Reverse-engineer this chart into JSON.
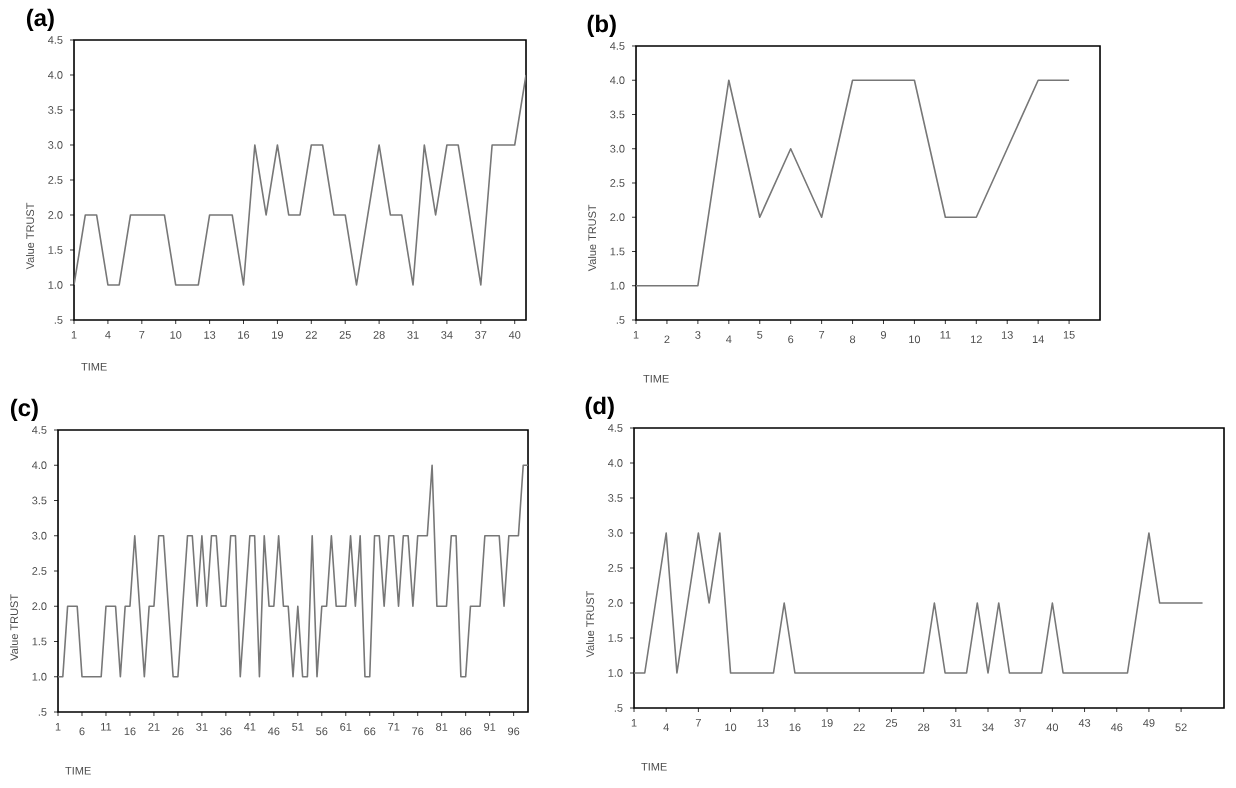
{
  "chart_data": [
    {
      "type": "line",
      "title": "(a)",
      "xlabel": "TIME",
      "ylabel": "Value TRUST",
      "color": "#777777",
      "line_style": "solid",
      "x": [
        1,
        2,
        3,
        4,
        5,
        6,
        7,
        8,
        9,
        10,
        11,
        12,
        13,
        14,
        15,
        16,
        17,
        18,
        19,
        20,
        21,
        22,
        23,
        24,
        25,
        26,
        27,
        28,
        29,
        30,
        31,
        32,
        33,
        34,
        35,
        36,
        37,
        38,
        39,
        40,
        41
      ],
      "values": [
        1,
        2,
        2,
        1,
        1,
        2,
        2,
        2,
        2,
        1,
        1,
        1,
        2,
        2,
        2,
        1,
        3,
        2,
        3,
        2,
        2,
        3,
        3,
        2,
        2,
        1,
        2,
        3,
        2,
        2,
        1,
        3,
        2,
        3,
        3,
        2,
        1,
        3,
        3,
        3,
        4
      ],
      "xlim": [
        1,
        41
      ],
      "xticks": [
        1,
        4,
        7,
        10,
        13,
        16,
        19,
        22,
        25,
        28,
        31,
        34,
        37,
        40
      ],
      "ylim": [
        0.5,
        4.5
      ],
      "yticks": [
        {
          "value": 0.5,
          "label": ".5"
        },
        {
          "value": 1,
          "label": "1.0"
        },
        {
          "value": 1.5,
          "label": "1.5"
        },
        {
          "value": 2,
          "label": "2.0"
        },
        {
          "value": 2.5,
          "label": "2.5"
        },
        {
          "value": 3,
          "label": "3.0"
        },
        {
          "value": 3.5,
          "label": "3.5"
        },
        {
          "value": 4,
          "label": "4.0"
        },
        {
          "value": 4.5,
          "label": "4.5"
        }
      ]
    },
    {
      "type": "line",
      "title": "(b)",
      "xlabel": "TIME",
      "ylabel": "Value TRUST",
      "color": "#777777",
      "line_style": "solid",
      "x": [
        1,
        2,
        3,
        4,
        5,
        6,
        7,
        8,
        9,
        10,
        11,
        12,
        13,
        14,
        15
      ],
      "values": [
        1,
        1,
        1,
        4,
        2,
        3,
        2,
        4,
        4,
        4,
        2,
        2,
        3,
        4,
        4
      ],
      "xlim": [
        1,
        16
      ],
      "xticks": [
        1,
        2,
        3,
        4,
        5,
        6,
        7,
        8,
        9,
        10,
        11,
        12,
        13,
        14,
        15
      ],
      "ylim": [
        0.5,
        4.5
      ],
      "yticks": [
        {
          "value": 0.5,
          "label": ".5"
        },
        {
          "value": 1,
          "label": "1.0"
        },
        {
          "value": 1.5,
          "label": "1.5"
        },
        {
          "value": 2,
          "label": "2.0"
        },
        {
          "value": 2.5,
          "label": "2.5"
        },
        {
          "value": 3,
          "label": "3.0"
        },
        {
          "value": 3.5,
          "label": "3.5"
        },
        {
          "value": 4,
          "label": "4.0"
        },
        {
          "value": 4.5,
          "label": "4.5"
        }
      ]
    },
    {
      "type": "line",
      "title": "(c)",
      "xlabel": "TIME",
      "ylabel": "Value TRUST",
      "color": "#777777",
      "line_style": "solid",
      "x": [
        1,
        2,
        3,
        4,
        5,
        6,
        7,
        8,
        9,
        10,
        11,
        12,
        13,
        14,
        15,
        16,
        17,
        18,
        19,
        20,
        21,
        22,
        23,
        24,
        25,
        26,
        27,
        28,
        29,
        30,
        31,
        32,
        33,
        34,
        35,
        36,
        37,
        38,
        39,
        40,
        41,
        42,
        43,
        44,
        45,
        46,
        47,
        48,
        49,
        50,
        51,
        52,
        53,
        54,
        55,
        56,
        57,
        58,
        59,
        60,
        61,
        62,
        63,
        64,
        65,
        66,
        67,
        68,
        69,
        70,
        71,
        72,
        73,
        74,
        75,
        76,
        77,
        78,
        79,
        80,
        81,
        82,
        83,
        84,
        85,
        86,
        87,
        88,
        89,
        90,
        91,
        92,
        93,
        94,
        95,
        96,
        97,
        98,
        99
      ],
      "values": [
        1,
        1,
        2,
        2,
        2,
        1,
        1,
        1,
        1,
        1,
        2,
        2,
        2,
        1,
        2,
        2,
        3,
        2,
        1,
        2,
        2,
        3,
        3,
        2,
        1,
        1,
        2,
        3,
        3,
        2,
        3,
        2,
        3,
        3,
        2,
        2,
        3,
        3,
        1,
        2,
        3,
        3,
        1,
        3,
        2,
        2,
        3,
        2,
        2,
        1,
        2,
        1,
        1,
        3,
        1,
        2,
        2,
        3,
        2,
        2,
        2,
        3,
        2,
        3,
        1,
        1,
        3,
        3,
        2,
        3,
        3,
        2,
        3,
        3,
        2,
        3,
        3,
        3,
        4,
        2,
        2,
        2,
        3,
        3,
        1,
        1,
        2,
        2,
        2,
        3,
        3,
        3,
        3,
        2,
        3,
        3,
        3,
        4,
        4
      ],
      "xlim": [
        1,
        99
      ],
      "xticks": [
        1,
        6,
        11,
        16,
        21,
        26,
        31,
        36,
        41,
        46,
        51,
        56,
        61,
        66,
        71,
        76,
        81,
        86,
        91,
        96
      ],
      "ylim": [
        0.5,
        4.5
      ],
      "yticks": [
        {
          "value": 0.5,
          "label": ".5"
        },
        {
          "value": 1,
          "label": "1.0"
        },
        {
          "value": 1.5,
          "label": "1.5"
        },
        {
          "value": 2,
          "label": "2.0"
        },
        {
          "value": 2.5,
          "label": "2.5"
        },
        {
          "value": 3,
          "label": "3.0"
        },
        {
          "value": 3.5,
          "label": "3.5"
        },
        {
          "value": 4,
          "label": "4.0"
        },
        {
          "value": 4.5,
          "label": "4.5"
        }
      ]
    },
    {
      "type": "line",
      "title": "(d)",
      "xlabel": "TIME",
      "ylabel": "Value TRUST",
      "color": "#777777",
      "line_style": "solid",
      "x": [
        1,
        2,
        3,
        4,
        5,
        6,
        7,
        8,
        9,
        10,
        11,
        12,
        13,
        14,
        15,
        16,
        17,
        18,
        19,
        20,
        21,
        22,
        23,
        24,
        25,
        26,
        27,
        28,
        29,
        30,
        31,
        32,
        33,
        34,
        35,
        36,
        37,
        38,
        39,
        40,
        41,
        42,
        43,
        44,
        45,
        46,
        47,
        48,
        49,
        50,
        51,
        52,
        53,
        54
      ],
      "values": [
        1,
        1,
        2,
        3,
        1,
        2,
        3,
        2,
        3,
        1,
        1,
        1,
        1,
        1,
        2,
        1,
        1,
        1,
        1,
        1,
        1,
        1,
        1,
        1,
        1,
        1,
        1,
        1,
        2,
        1,
        1,
        1,
        2,
        1,
        2,
        1,
        1,
        1,
        1,
        2,
        1,
        1,
        1,
        1,
        1,
        1,
        1,
        2,
        3,
        2,
        2,
        2,
        2,
        2
      ],
      "xlim": [
        1,
        56
      ],
      "xticks": [
        1,
        4,
        7,
        10,
        13,
        16,
        19,
        22,
        25,
        28,
        31,
        34,
        37,
        40,
        43,
        46,
        49,
        52
      ],
      "ylim": [
        0.5,
        4.5
      ],
      "yticks": [
        {
          "value": 0.5,
          "label": ".5"
        },
        {
          "value": 1,
          "label": "1.0"
        },
        {
          "value": 1.5,
          "label": "1.5"
        },
        {
          "value": 2,
          "label": "2.0"
        },
        {
          "value": 2.5,
          "label": "2.5"
        },
        {
          "value": 3,
          "label": "3.0"
        },
        {
          "value": 3.5,
          "label": "3.5"
        },
        {
          "value": 4,
          "label": "4.0"
        },
        {
          "value": 4.5,
          "label": "4.5"
        }
      ]
    }
  ]
}
